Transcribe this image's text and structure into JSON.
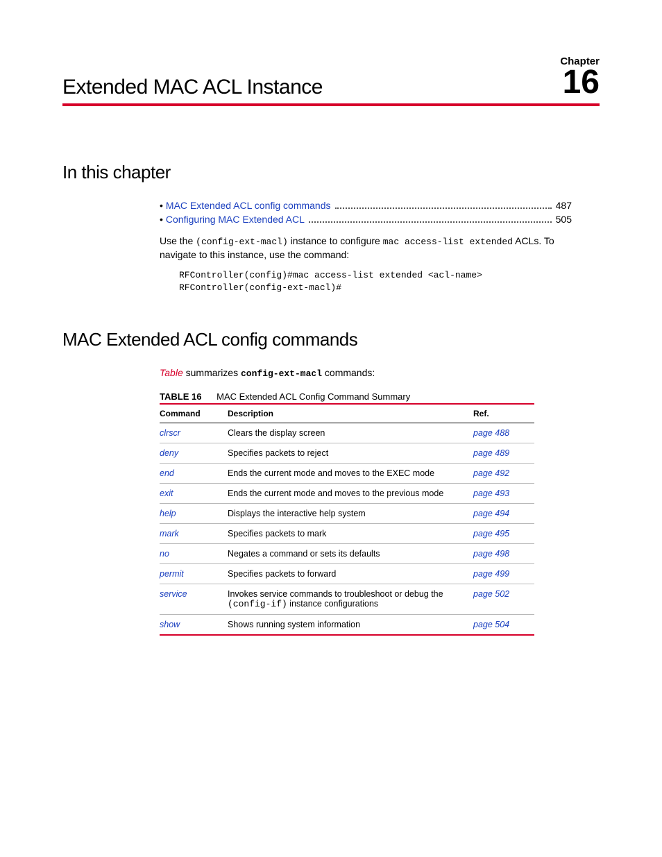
{
  "chapter": {
    "label": "Chapter",
    "number": "16",
    "title": "Extended MAC ACL Instance"
  },
  "section_in_this_chapter": {
    "heading": "In this chapter",
    "toc": [
      {
        "label": "MAC Extended ACL config commands",
        "page": "487"
      },
      {
        "label": "Configuring MAC Extended ACL",
        "page": "505"
      }
    ],
    "use_the": "Use the ",
    "code1": "(config-ext-macl)",
    "middle": " instance to configure ",
    "code2": "mac access-list extended",
    "after": " ACLs. To navigate to this instance, use the command:",
    "code_block": "RFController(config)#mac access-list extended <acl-name>\nRFController(config-ext-macl)#"
  },
  "section_commands": {
    "heading": "MAC Extended ACL config commands",
    "table_link": "Table",
    "summarizes1": "  summarizes ",
    "code": "config-ext-macl",
    "summarizes2": " commands:",
    "table_label": "TABLE 16",
    "table_title": "MAC Extended ACL Config Command Summary",
    "columns": {
      "cmd": "Command",
      "desc": "Description",
      "ref": "Ref."
    },
    "rows": [
      {
        "cmd": "clrscr",
        "desc": "Clears the display screen",
        "ref": "page 488"
      },
      {
        "cmd": "deny",
        "desc": "Specifies packets to reject",
        "ref": "page 489"
      },
      {
        "cmd": "end",
        "desc": "Ends the current mode and moves to the EXEC mode",
        "ref": "page 492"
      },
      {
        "cmd": "exit",
        "desc": "Ends the current mode and moves to the previous mode",
        "ref": "page 493"
      },
      {
        "cmd": "help",
        "desc": "Displays the interactive help system",
        "ref": "page 494"
      },
      {
        "cmd": "mark",
        "desc": "Specifies packets to mark",
        "ref": "page 495"
      },
      {
        "cmd": "no",
        "desc": "Negates a command or sets its defaults",
        "ref": "page 498"
      },
      {
        "cmd": "permit",
        "desc": "Specifies packets to forward",
        "ref": "page 499"
      },
      {
        "cmd": "service",
        "desc_pre": "Invokes service commands to troubleshoot or debug the ",
        "desc_code": "(config-if)",
        "desc_post": " instance configurations",
        "ref": "page 502"
      },
      {
        "cmd": "show",
        "desc": "Shows running system information",
        "ref": "page 504"
      }
    ]
  },
  "colors": {
    "accent_red": "#d6002a",
    "link_blue": "#1a3fbf",
    "text": "#000000",
    "row_border": "#b8b8b8"
  }
}
